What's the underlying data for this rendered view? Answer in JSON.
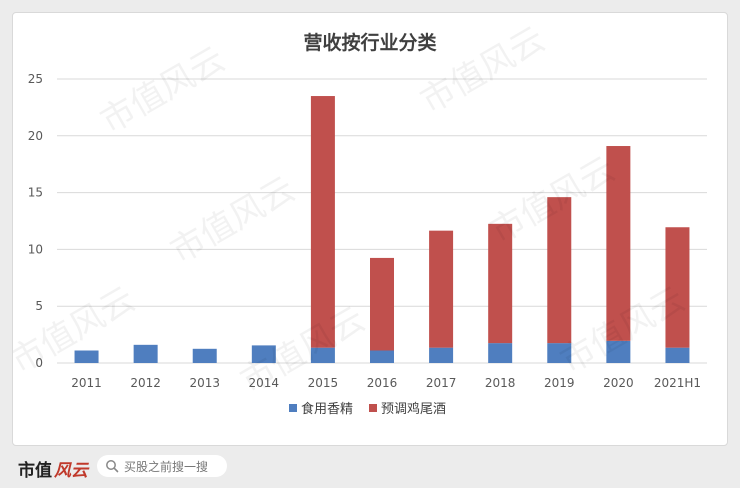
{
  "chart_data": {
    "type": "bar",
    "stacked": true,
    "title": "营收按行业分类",
    "categories": [
      "2011",
      "2012",
      "2013",
      "2014",
      "2015",
      "2016",
      "2017",
      "2018",
      "2019",
      "2020",
      "2021H1"
    ],
    "series": [
      {
        "name": "食用香精",
        "color": "#4f7ebf",
        "values": [
          1.1,
          1.6,
          1.25,
          1.55,
          1.35,
          1.1,
          1.35,
          1.75,
          1.75,
          1.95,
          1.35
        ]
      },
      {
        "name": "预调鸡尾酒",
        "color": "#c0504d",
        "values": [
          0,
          0,
          0,
          0,
          22.15,
          8.15,
          10.3,
          10.5,
          12.85,
          17.15,
          10.6
        ]
      }
    ],
    "ylim": [
      0,
      25
    ],
    "yticks": [
      "0",
      "5",
      "10",
      "15",
      "20",
      "25"
    ],
    "grid": true,
    "legend_position": "bottom"
  },
  "footer": {
    "brand": "市值",
    "brand_script": "风云",
    "search_placeholder": "买股之前搜一搜"
  },
  "watermark": "市值风云"
}
